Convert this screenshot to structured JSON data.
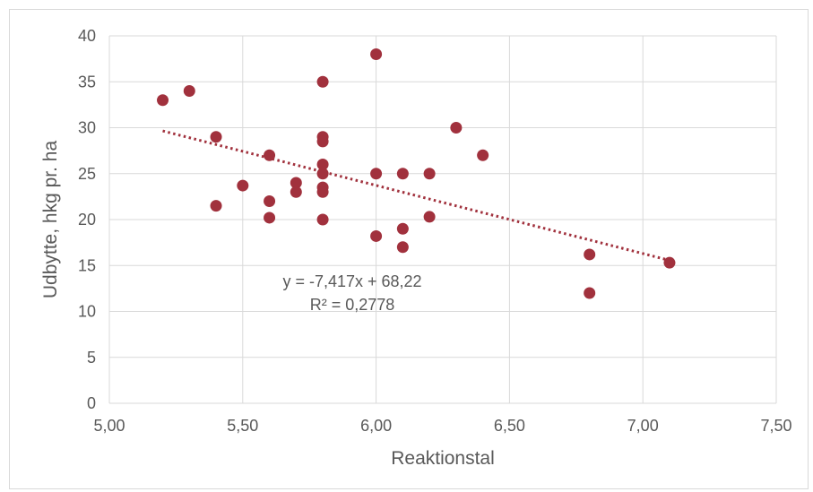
{
  "chart_data": {
    "type": "scatter",
    "title": "",
    "xlabel": "Reaktionstal",
    "ylabel": "Udbytte, hkg pr. ha",
    "xlim": [
      5.0,
      7.5
    ],
    "ylim": [
      0,
      40
    ],
    "x_ticks": [
      "5,00",
      "5,50",
      "6,00",
      "6,50",
      "7,00",
      "7,50"
    ],
    "x_tick_values": [
      5.0,
      5.5,
      6.0,
      6.5,
      7.0,
      7.5
    ],
    "y_ticks": [
      "0",
      "5",
      "10",
      "15",
      "20",
      "25",
      "30",
      "35",
      "40"
    ],
    "y_tick_values": [
      0,
      5,
      10,
      15,
      20,
      25,
      30,
      35,
      40
    ],
    "grid": true,
    "legend": "none",
    "marker_color": "#a1313d",
    "trendline_color": "#a1313d",
    "series": [
      {
        "points": [
          [
            5.2,
            33
          ],
          [
            5.3,
            34
          ],
          [
            5.4,
            29
          ],
          [
            5.4,
            21.5
          ],
          [
            5.5,
            23.7
          ],
          [
            5.6,
            27
          ],
          [
            5.6,
            22
          ],
          [
            5.6,
            20.2
          ],
          [
            5.7,
            24
          ],
          [
            5.7,
            23
          ],
          [
            5.8,
            35
          ],
          [
            5.8,
            29
          ],
          [
            5.8,
            28.5
          ],
          [
            5.8,
            26
          ],
          [
            5.8,
            25
          ],
          [
            5.8,
            23.5
          ],
          [
            5.8,
            23
          ],
          [
            5.8,
            20
          ],
          [
            6.0,
            38
          ],
          [
            6.0,
            25
          ],
          [
            6.0,
            18.2
          ],
          [
            6.1,
            25
          ],
          [
            6.1,
            19
          ],
          [
            6.1,
            17
          ],
          [
            6.2,
            25
          ],
          [
            6.2,
            20.3
          ],
          [
            6.3,
            30
          ],
          [
            6.4,
            27
          ],
          [
            6.8,
            16.2
          ],
          [
            6.8,
            12
          ],
          [
            7.1,
            15.3
          ]
        ]
      }
    ],
    "trendline": {
      "type": "linear",
      "slope": -7.417,
      "intercept": 68.22,
      "x_range": [
        5.2,
        7.1
      ],
      "equation_label": "y = -7,417x + 68,22",
      "r2_label": "R² = 0,2778"
    }
  }
}
